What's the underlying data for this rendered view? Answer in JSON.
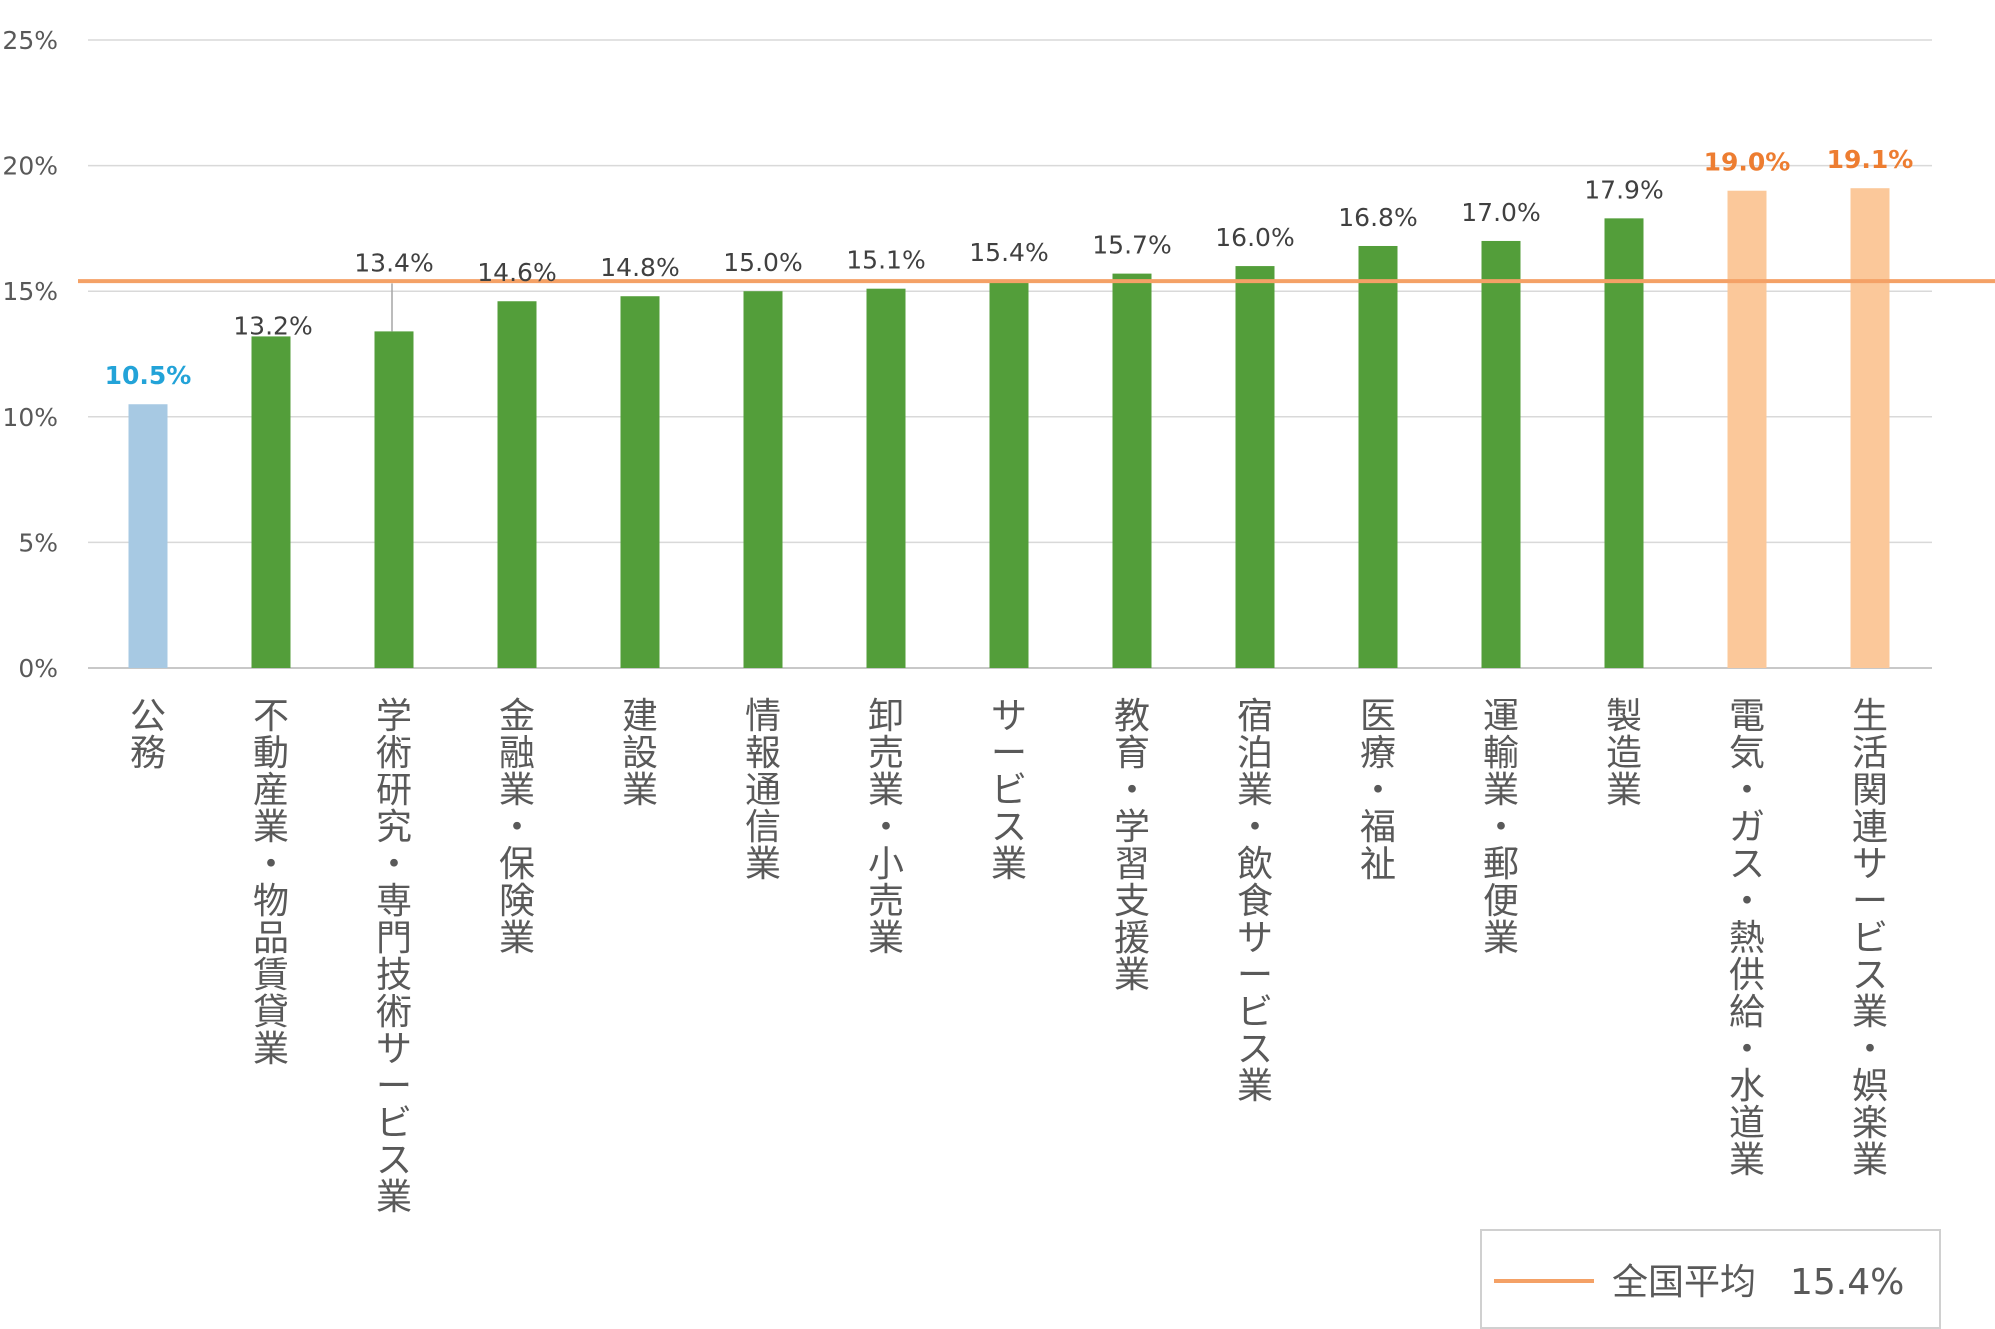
{
  "chart_data": {
    "type": "bar",
    "title": "",
    "xlabel": "",
    "ylabel": "",
    "ylim": [
      0,
      25
    ],
    "yticks": [
      0,
      5,
      10,
      15,
      20,
      25
    ],
    "ytick_labels": [
      "0%",
      "5%",
      "10%",
      "15%",
      "20%",
      "25%"
    ],
    "grid": true,
    "categories": [
      "公務",
      "不動産業・物品賃貸業",
      "学術研究・専門技術サービス業",
      "金融業・保険業",
      "建設業",
      "情報通信業",
      "卸売業・小売業",
      "サービス業",
      "教育・学習支援業",
      "宿泊業・飲食サービス業",
      "医療・福祉",
      "運輸業・郵便業",
      "製造業",
      "電気・ガス・熱供給・水道業",
      "生活関連サービス業・娯楽業"
    ],
    "values": [
      10.5,
      13.2,
      13.4,
      14.6,
      14.8,
      15.0,
      15.1,
      15.4,
      15.7,
      16.0,
      16.8,
      17.0,
      17.9,
      19.0,
      19.1
    ],
    "value_labels": [
      "10.5%",
      "13.2%",
      "13.4%",
      "14.6%",
      "14.8%",
      "15.0%",
      "15.1%",
      "15.4%",
      "15.7%",
      "16.0%",
      "16.8%",
      "17.0%",
      "17.9%",
      "19.0%",
      "19.1%"
    ],
    "bar_colors": [
      "#a7c9e3",
      "#539e3a",
      "#539e3a",
      "#539e3a",
      "#539e3a",
      "#539e3a",
      "#539e3a",
      "#539e3a",
      "#539e3a",
      "#539e3a",
      "#539e3a",
      "#539e3a",
      "#539e3a",
      "#fbc89a",
      "#fbc89a"
    ],
    "label_colors": [
      "#23a3d8",
      "#404040",
      "#404040",
      "#404040",
      "#404040",
      "#404040",
      "#404040",
      "#404040",
      "#404040",
      "#404040",
      "#404040",
      "#404040",
      "#404040",
      "#ed7d31",
      "#ed7d31"
    ],
    "label_bold": [
      true,
      false,
      false,
      false,
      false,
      false,
      false,
      false,
      false,
      false,
      false,
      false,
      false,
      true,
      true
    ],
    "reference_line": {
      "value": 15.4,
      "color": "#f4a166",
      "legend_label": "全国平均",
      "legend_value": "15.4%"
    },
    "legend_position": "bottom-right"
  }
}
